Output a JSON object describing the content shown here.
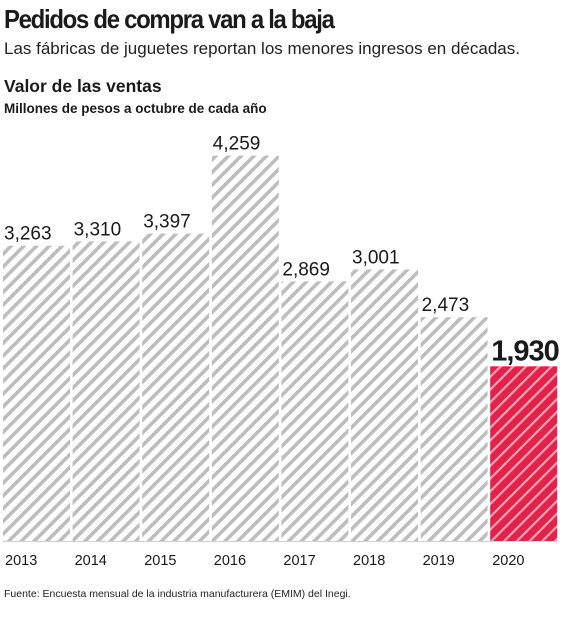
{
  "header": {
    "title": "Pedidos de compra van a la baja",
    "subtitle": "Las fábricas de juguetes reportan los menores ingresos en décadas."
  },
  "chart_header": {
    "title": "Valor de las ventas",
    "units": "Millones de pesos a octubre de cada año"
  },
  "footer": {
    "source": "Fuente: Encuesta mensual de la industria manufacturera (EMIM) del Inegi."
  },
  "colors": {
    "bar_hatch": "#bdbdbd",
    "highlight": "#e0234a",
    "highlight_hatch": "#f4a0b2",
    "text": "#1a1a1a",
    "baseline": "#333333"
  },
  "chart_data": {
    "type": "bar",
    "title": "Valor de las ventas",
    "ylabel": "Millones de pesos a octubre de cada año",
    "categories": [
      "2013",
      "2014",
      "2015",
      "2016",
      "2017",
      "2018",
      "2019",
      "2020"
    ],
    "values": [
      3263,
      3310,
      3397,
      4259,
      2869,
      3001,
      2473,
      1930
    ],
    "value_labels": [
      "3,263",
      "3,310",
      "3,397",
      "4,259",
      "2,869",
      "3,001",
      "2,473",
      "1,930"
    ],
    "highlight_index": 7,
    "ylim": [
      0,
      4500
    ],
    "grid": false,
    "legend": "none"
  }
}
